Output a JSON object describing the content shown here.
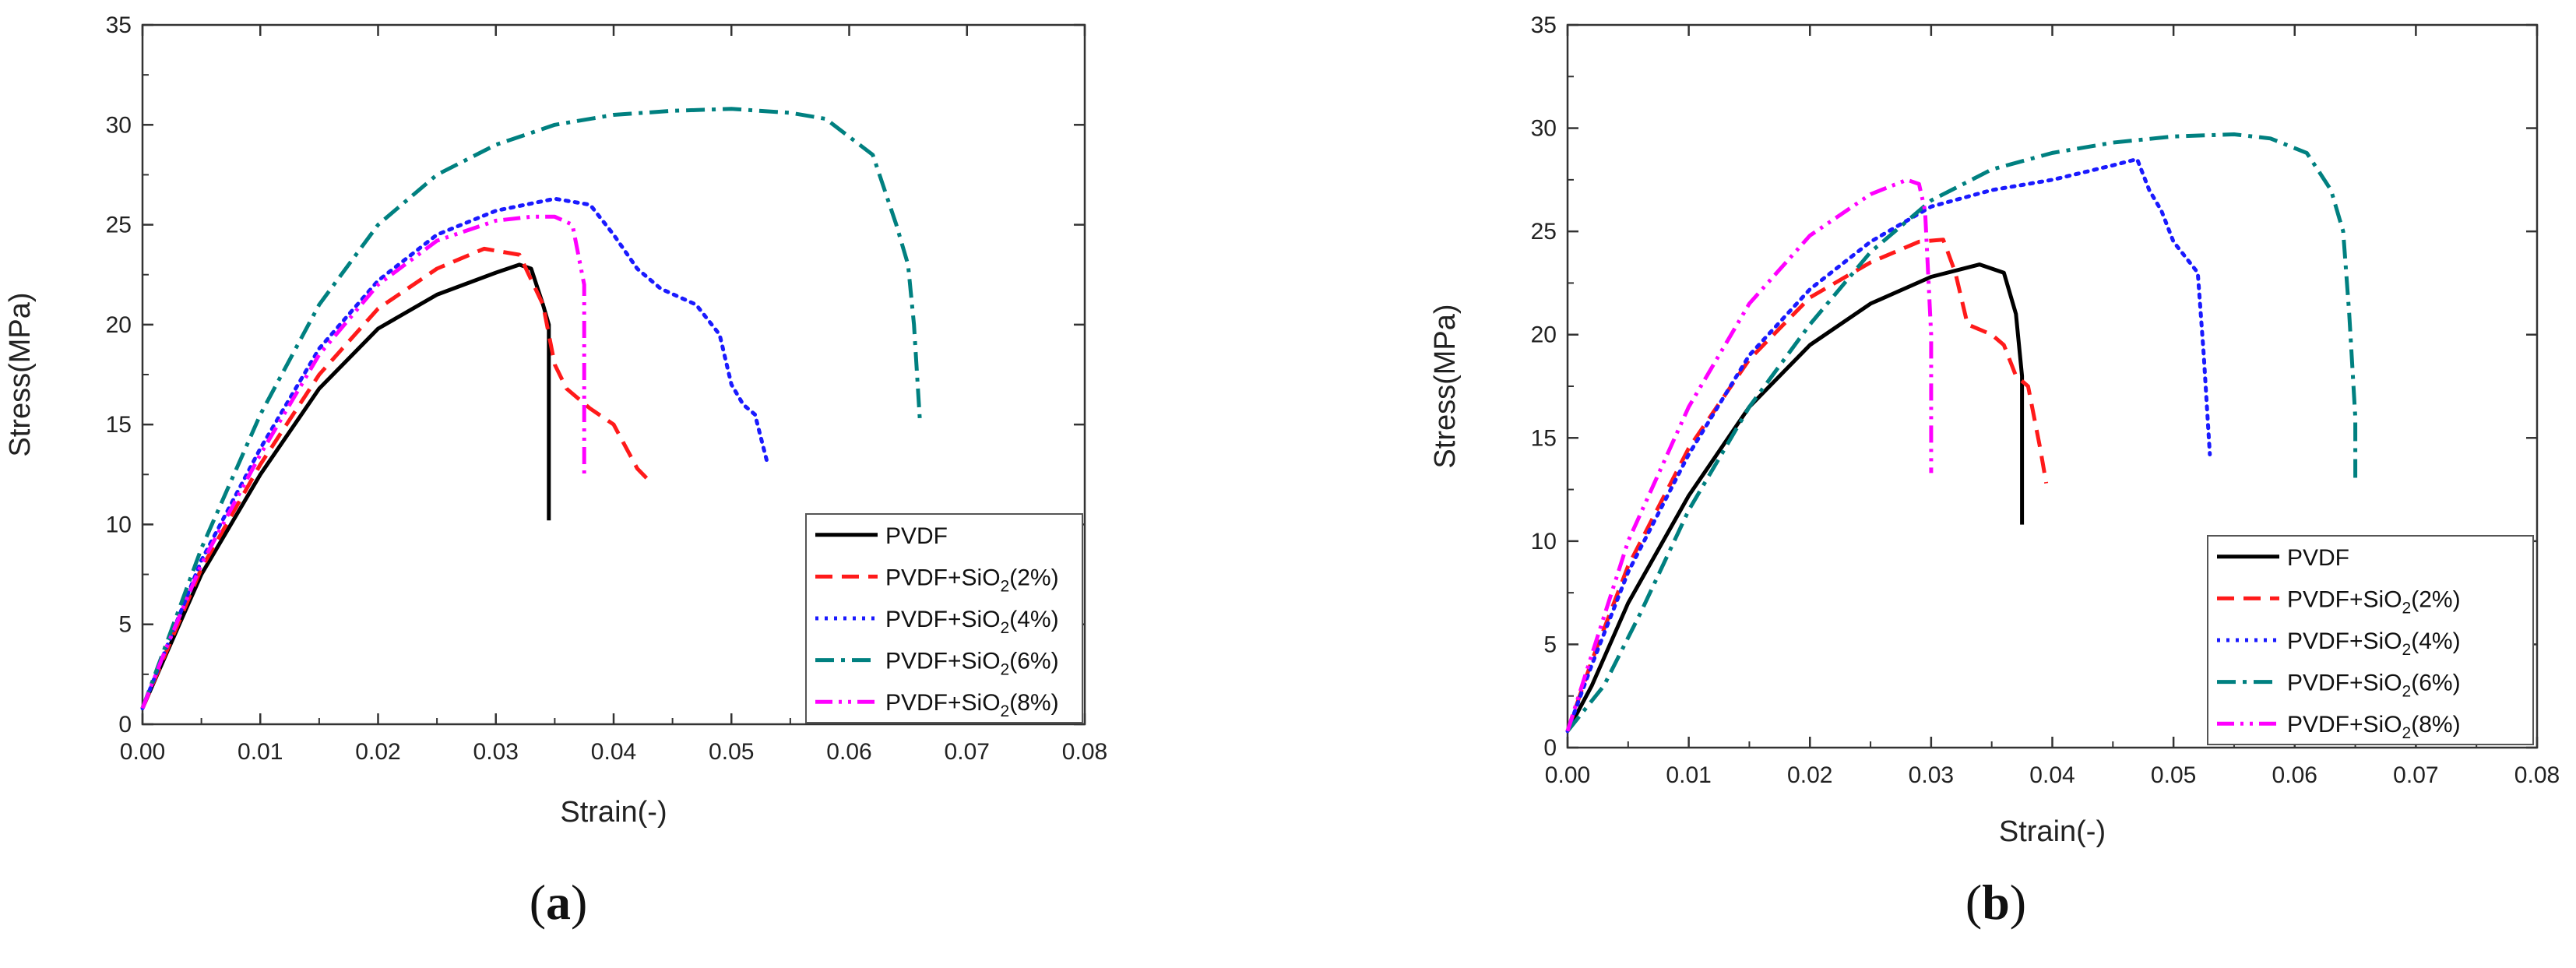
{
  "chart_data": [
    {
      "type": "line",
      "panel_label": "(a)",
      "panel_letter": "a",
      "xlabel": "Strain(-)",
      "ylabel": "Stress(MPa)",
      "xlim": [
        0,
        0.08
      ],
      "ylim": [
        0,
        35
      ],
      "xticks": [
        "0.00",
        "0.01",
        "0.02",
        "0.03",
        "0.04",
        "0.05",
        "0.06",
        "0.07",
        "0.08"
      ],
      "yticks": [
        "0",
        "5",
        "10",
        "15",
        "20",
        "25",
        "30",
        "35"
      ],
      "legend_position": "bottom-right",
      "series": [
        {
          "name": "PVDF",
          "name_base": "PVDF",
          "name_sub": "",
          "name_tail": "",
          "color": "#000000",
          "dash": "solid",
          "x": [
            0,
            0.002,
            0.005,
            0.01,
            0.015,
            0.02,
            0.025,
            0.03,
            0.032,
            0.033,
            0.034,
            0.0345,
            0.0345
          ],
          "y": [
            0.8,
            3.5,
            7.5,
            12.5,
            16.8,
            19.8,
            21.5,
            22.6,
            23.0,
            22.8,
            21.0,
            20.0,
            10.2
          ]
        },
        {
          "name": "PVDF+SiO2(2%)",
          "name_base": "PVDF+SiO",
          "name_sub": "2",
          "name_tail": "(2%)",
          "color": "#ff1a1a",
          "dash": "dashed",
          "x": [
            0,
            0.002,
            0.005,
            0.01,
            0.015,
            0.02,
            0.025,
            0.029,
            0.032,
            0.034,
            0.035,
            0.036,
            0.038,
            0.04,
            0.042,
            0.043
          ],
          "y": [
            0.8,
            3.6,
            7.8,
            13.0,
            17.5,
            20.8,
            22.8,
            23.8,
            23.5,
            21.0,
            18.0,
            16.8,
            15.8,
            15.0,
            12.8,
            12.2
          ]
        },
        {
          "name": "PVDF+SiO2(4%)",
          "name_base": "PVDF+SiO",
          "name_sub": "2",
          "name_tail": "(4%)",
          "color": "#1a1aff",
          "dash": "dotted",
          "x": [
            0,
            0.002,
            0.005,
            0.01,
            0.015,
            0.02,
            0.025,
            0.03,
            0.035,
            0.038,
            0.04,
            0.042,
            0.044,
            0.047,
            0.049,
            0.05,
            0.051,
            0.052,
            0.053
          ],
          "y": [
            0.8,
            3.8,
            8.2,
            13.8,
            18.8,
            22.2,
            24.5,
            25.7,
            26.3,
            26.0,
            24.5,
            22.8,
            21.8,
            21.0,
            19.5,
            17.0,
            16.0,
            15.5,
            13.2
          ]
        },
        {
          "name": "PVDF+SiO2(6%)",
          "name_base": "PVDF+SiO",
          "name_sub": "2",
          "name_tail": "(6%)",
          "color": "#008080",
          "dash": "dashdot",
          "x": [
            0,
            0.002,
            0.005,
            0.01,
            0.015,
            0.02,
            0.025,
            0.03,
            0.035,
            0.04,
            0.045,
            0.05,
            0.055,
            0.058,
            0.062,
            0.064,
            0.065,
            0.0655,
            0.066
          ],
          "y": [
            0.8,
            4.0,
            8.8,
            15.5,
            21.0,
            25.0,
            27.5,
            29.0,
            30.0,
            30.5,
            30.7,
            30.8,
            30.6,
            30.3,
            28.5,
            25.0,
            23.0,
            20.0,
            15.2
          ]
        },
        {
          "name": "PVDF+SiO2(8%)",
          "name_base": "PVDF+SiO",
          "name_sub": "2",
          "name_tail": "(8%)",
          "color": "#ff00ff",
          "dash": "dashdotdot",
          "x": [
            0,
            0.002,
            0.005,
            0.01,
            0.015,
            0.02,
            0.025,
            0.03,
            0.033,
            0.035,
            0.0365,
            0.0375,
            0.0375
          ],
          "y": [
            0.8,
            3.8,
            8.0,
            13.5,
            18.5,
            22.0,
            24.2,
            25.2,
            25.4,
            25.4,
            25.0,
            22.0,
            12.5
          ]
        }
      ]
    },
    {
      "type": "line",
      "panel_label": "(b)",
      "panel_letter": "b",
      "xlabel": "Strain(-)",
      "ylabel": "Stress(MPa)",
      "xlim": [
        0,
        0.08
      ],
      "ylim": [
        0,
        35
      ],
      "xticks": [
        "0.00",
        "0.01",
        "0.02",
        "0.03",
        "0.04",
        "0.05",
        "0.06",
        "0.07",
        "0.08"
      ],
      "yticks": [
        "0",
        "5",
        "10",
        "15",
        "20",
        "25",
        "30",
        "35"
      ],
      "legend_position": "bottom-right",
      "series": [
        {
          "name": "PVDF",
          "name_base": "PVDF",
          "name_sub": "",
          "name_tail": "",
          "color": "#000000",
          "dash": "solid",
          "x": [
            0,
            0.002,
            0.005,
            0.01,
            0.015,
            0.02,
            0.025,
            0.03,
            0.034,
            0.036,
            0.037,
            0.0375,
            0.0375
          ],
          "y": [
            0.8,
            3.0,
            7.0,
            12.2,
            16.5,
            19.5,
            21.5,
            22.8,
            23.4,
            23.0,
            21.0,
            18.0,
            10.8
          ]
        },
        {
          "name": "PVDF+SiO2(2%)",
          "name_base": "PVDF+SiO",
          "name_sub": "2",
          "name_tail": "(2%)",
          "color": "#ff1a1a",
          "dash": "dashed",
          "x": [
            0,
            0.002,
            0.005,
            0.01,
            0.015,
            0.02,
            0.025,
            0.029,
            0.031,
            0.032,
            0.033,
            0.035,
            0.036,
            0.037,
            0.038,
            0.039,
            0.0395
          ],
          "y": [
            0.8,
            4.2,
            8.8,
            14.5,
            18.8,
            21.8,
            23.5,
            24.5,
            24.6,
            23.0,
            20.5,
            20.0,
            19.5,
            18.0,
            17.5,
            14.5,
            12.8
          ]
        },
        {
          "name": "PVDF+SiO2(4%)",
          "name_base": "PVDF+SiO",
          "name_sub": "2",
          "name_tail": "(4%)",
          "color": "#1a1aff",
          "dash": "dotted",
          "x": [
            0,
            0.002,
            0.005,
            0.01,
            0.015,
            0.02,
            0.025,
            0.03,
            0.035,
            0.04,
            0.045,
            0.047,
            0.048,
            0.049,
            0.05,
            0.052,
            0.0525,
            0.053
          ],
          "y": [
            0.8,
            4.0,
            8.5,
            14.2,
            19.0,
            22.2,
            24.5,
            26.2,
            27.0,
            27.5,
            28.2,
            28.5,
            27.0,
            26.0,
            24.5,
            23.0,
            19.0,
            14.2
          ]
        },
        {
          "name": "PVDF+SiO2(6%)",
          "name_base": "PVDF+SiO",
          "name_sub": "2",
          "name_tail": "(6%)",
          "color": "#008080",
          "dash": "dashdot",
          "x": [
            0,
            0.003,
            0.006,
            0.01,
            0.015,
            0.02,
            0.025,
            0.03,
            0.035,
            0.04,
            0.045,
            0.05,
            0.055,
            0.058,
            0.061,
            0.063,
            0.064,
            0.0645,
            0.065,
            0.065
          ],
          "y": [
            0.8,
            3.0,
            6.5,
            11.5,
            16.5,
            20.5,
            24.0,
            26.5,
            28.0,
            28.8,
            29.3,
            29.6,
            29.7,
            29.5,
            28.8,
            27.0,
            25.0,
            21.0,
            16.0,
            13.0
          ]
        },
        {
          "name": "PVDF+SiO2(8%)",
          "name_base": "PVDF+SiO",
          "name_sub": "2",
          "name_tail": "(8%)",
          "color": "#ff00ff",
          "dash": "dashdotdot",
          "x": [
            0,
            0.002,
            0.005,
            0.01,
            0.015,
            0.02,
            0.025,
            0.028,
            0.029,
            0.0295,
            0.03,
            0.03
          ],
          "y": [
            0.8,
            4.5,
            10.0,
            16.5,
            21.5,
            24.8,
            26.8,
            27.5,
            27.3,
            26.0,
            20.0,
            13.3
          ]
        }
      ]
    }
  ]
}
